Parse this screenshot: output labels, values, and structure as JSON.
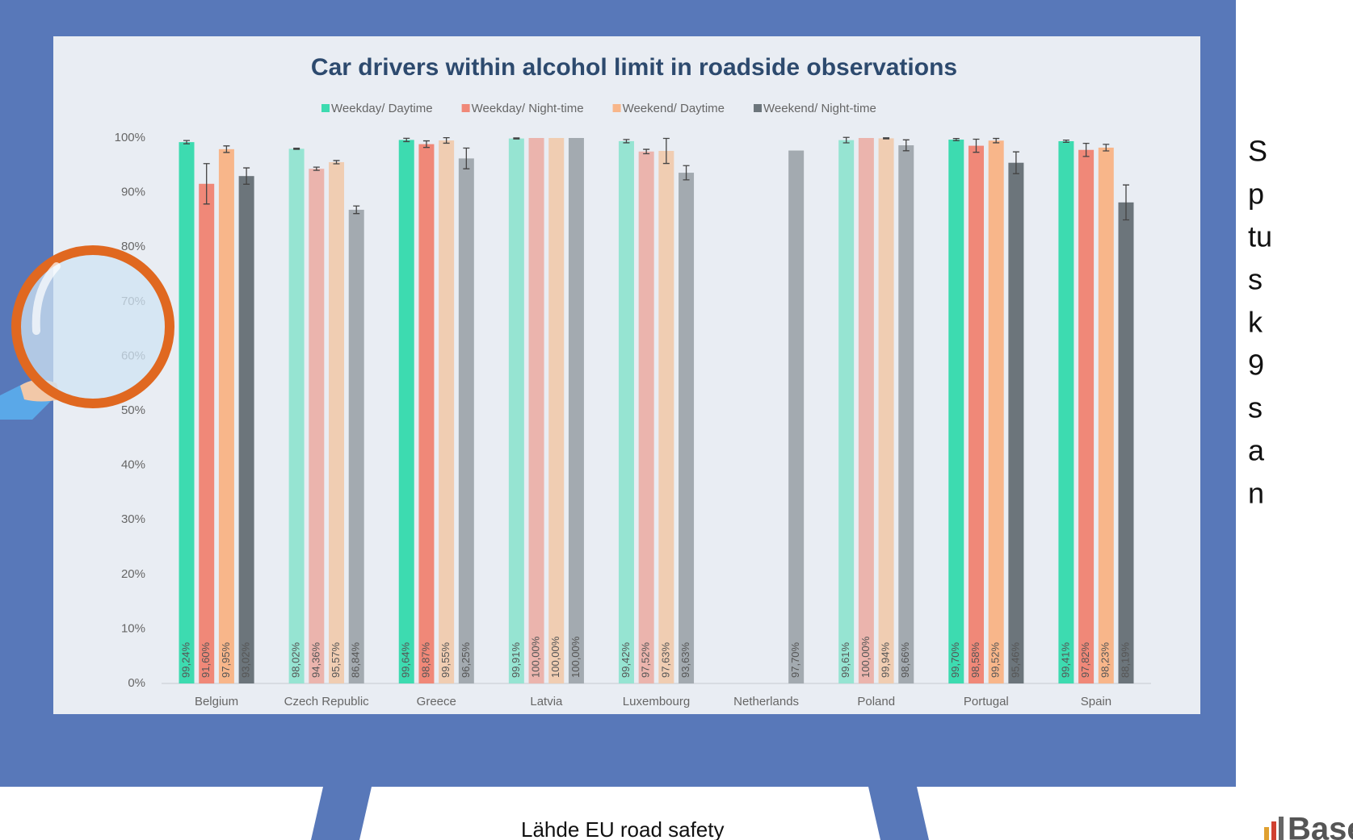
{
  "chart_data": {
    "type": "bar",
    "title": "Car drivers within alcohol limit in roadside observations",
    "categories": [
      "Belgium",
      "Czech Republic",
      "Greece",
      "Latvia",
      "Luxembourg",
      "Netherlands",
      "Poland",
      "Portugal",
      "Spain"
    ],
    "series": [
      {
        "name": "Weekday/ Daytime",
        "color": "#3ddbb0",
        "colors": [
          "#3ddbb0",
          "#96e4d2",
          "#3ddbb0",
          "#96e4d2",
          "#96e4d2",
          "#96e4d2",
          "#96e4d2",
          "#3ddbb0",
          "#3ddbb0"
        ],
        "values": [
          99.24,
          98.02,
          99.64,
          99.91,
          99.42,
          null,
          99.61,
          99.7,
          99.41
        ],
        "value_labels": [
          "99,24%",
          "98,02%",
          "99,64%",
          "99,91%",
          "99,42%",
          null,
          "99,61%",
          "99,70%",
          "99,41%"
        ],
        "errors": [
          0.3,
          0.1,
          0.3,
          0.1,
          0.3,
          null,
          0.5,
          0.2,
          0.2
        ]
      },
      {
        "name": "Weekday/ Night-time",
        "color": "#f08878",
        "colors": [
          "#f08878",
          "#ebb4ad",
          "#f08878",
          "#ebb4ad",
          "#ebb4ad",
          "#ebb4ad",
          "#ebb4ad",
          "#f08878",
          "#f08878"
        ],
        "values": [
          91.6,
          94.36,
          98.87,
          100.0,
          97.52,
          null,
          100.0,
          98.58,
          97.82
        ],
        "value_labels": [
          "91,60%",
          "94,36%",
          "98,87%",
          "100,00%",
          "97,52%",
          null,
          "100,00%",
          "98,58%",
          "97,82%"
        ],
        "errors": [
          3.7,
          0.3,
          0.6,
          null,
          0.4,
          null,
          null,
          1.2,
          1.2
        ]
      },
      {
        "name": "Weekend/ Daytime",
        "color": "#f8b68a",
        "colors": [
          "#f8b68a",
          "#f0cdb2",
          "#f0cdb2",
          "#f0cdb2",
          "#f0cdb2",
          "#f0cdb2",
          "#f0cdb2",
          "#f8b68a",
          "#f8b68a"
        ],
        "values": [
          97.95,
          95.57,
          99.55,
          100.0,
          97.63,
          null,
          99.94,
          99.52,
          98.23
        ],
        "value_labels": [
          "97,95%",
          "95,57%",
          "99,55%",
          "100,00%",
          "97,63%",
          null,
          "99,94%",
          "99,52%",
          "98,23%"
        ],
        "errors": [
          0.6,
          0.3,
          0.5,
          null,
          2.3,
          null,
          0.1,
          0.4,
          0.6
        ]
      },
      {
        "name": "Weekend/ Night-time",
        "color": "#6c757b",
        "colors": [
          "#6c757b",
          "#a3aab0",
          "#a3aab0",
          "#a3aab0",
          "#a3aab0",
          "#a3aab0",
          "#a3aab0",
          "#6c757b",
          "#6c757b"
        ],
        "values": [
          93.02,
          86.84,
          96.25,
          100.0,
          93.63,
          97.7,
          98.66,
          95.46,
          88.19
        ],
        "value_labels": [
          "93,02%",
          "86,84%",
          "96,25%",
          "100,00%",
          "93,63%",
          "97,70%",
          "98,66%",
          "95,46%",
          "88,19%"
        ],
        "errors": [
          1.5,
          0.7,
          1.9,
          null,
          1.3,
          null,
          1.0,
          2.0,
          3.2
        ]
      }
    ],
    "ylim": [
      0,
      100
    ],
    "yticks": [
      {
        "value": 0,
        "label": "0%"
      },
      {
        "value": 10,
        "label": "10%"
      },
      {
        "value": 20,
        "label": "20%"
      },
      {
        "value": 30,
        "label": "30%"
      },
      {
        "value": 40,
        "label": "40%"
      },
      {
        "value": 50,
        "label": "50%"
      },
      {
        "value": 60,
        "label": "60%"
      },
      {
        "value": 70,
        "label": "70%"
      },
      {
        "value": 80,
        "label": "80%"
      },
      {
        "value": 90,
        "label": "90%"
      },
      {
        "value": 100,
        "label": "100%"
      }
    ],
    "legend": "top"
  },
  "side_text": [
    "S",
    "p",
    "tu",
    "s",
    "k",
    "9",
    "s",
    "a",
    "n"
  ],
  "source": "Lähde EU road safety",
  "logo": "Baseline"
}
